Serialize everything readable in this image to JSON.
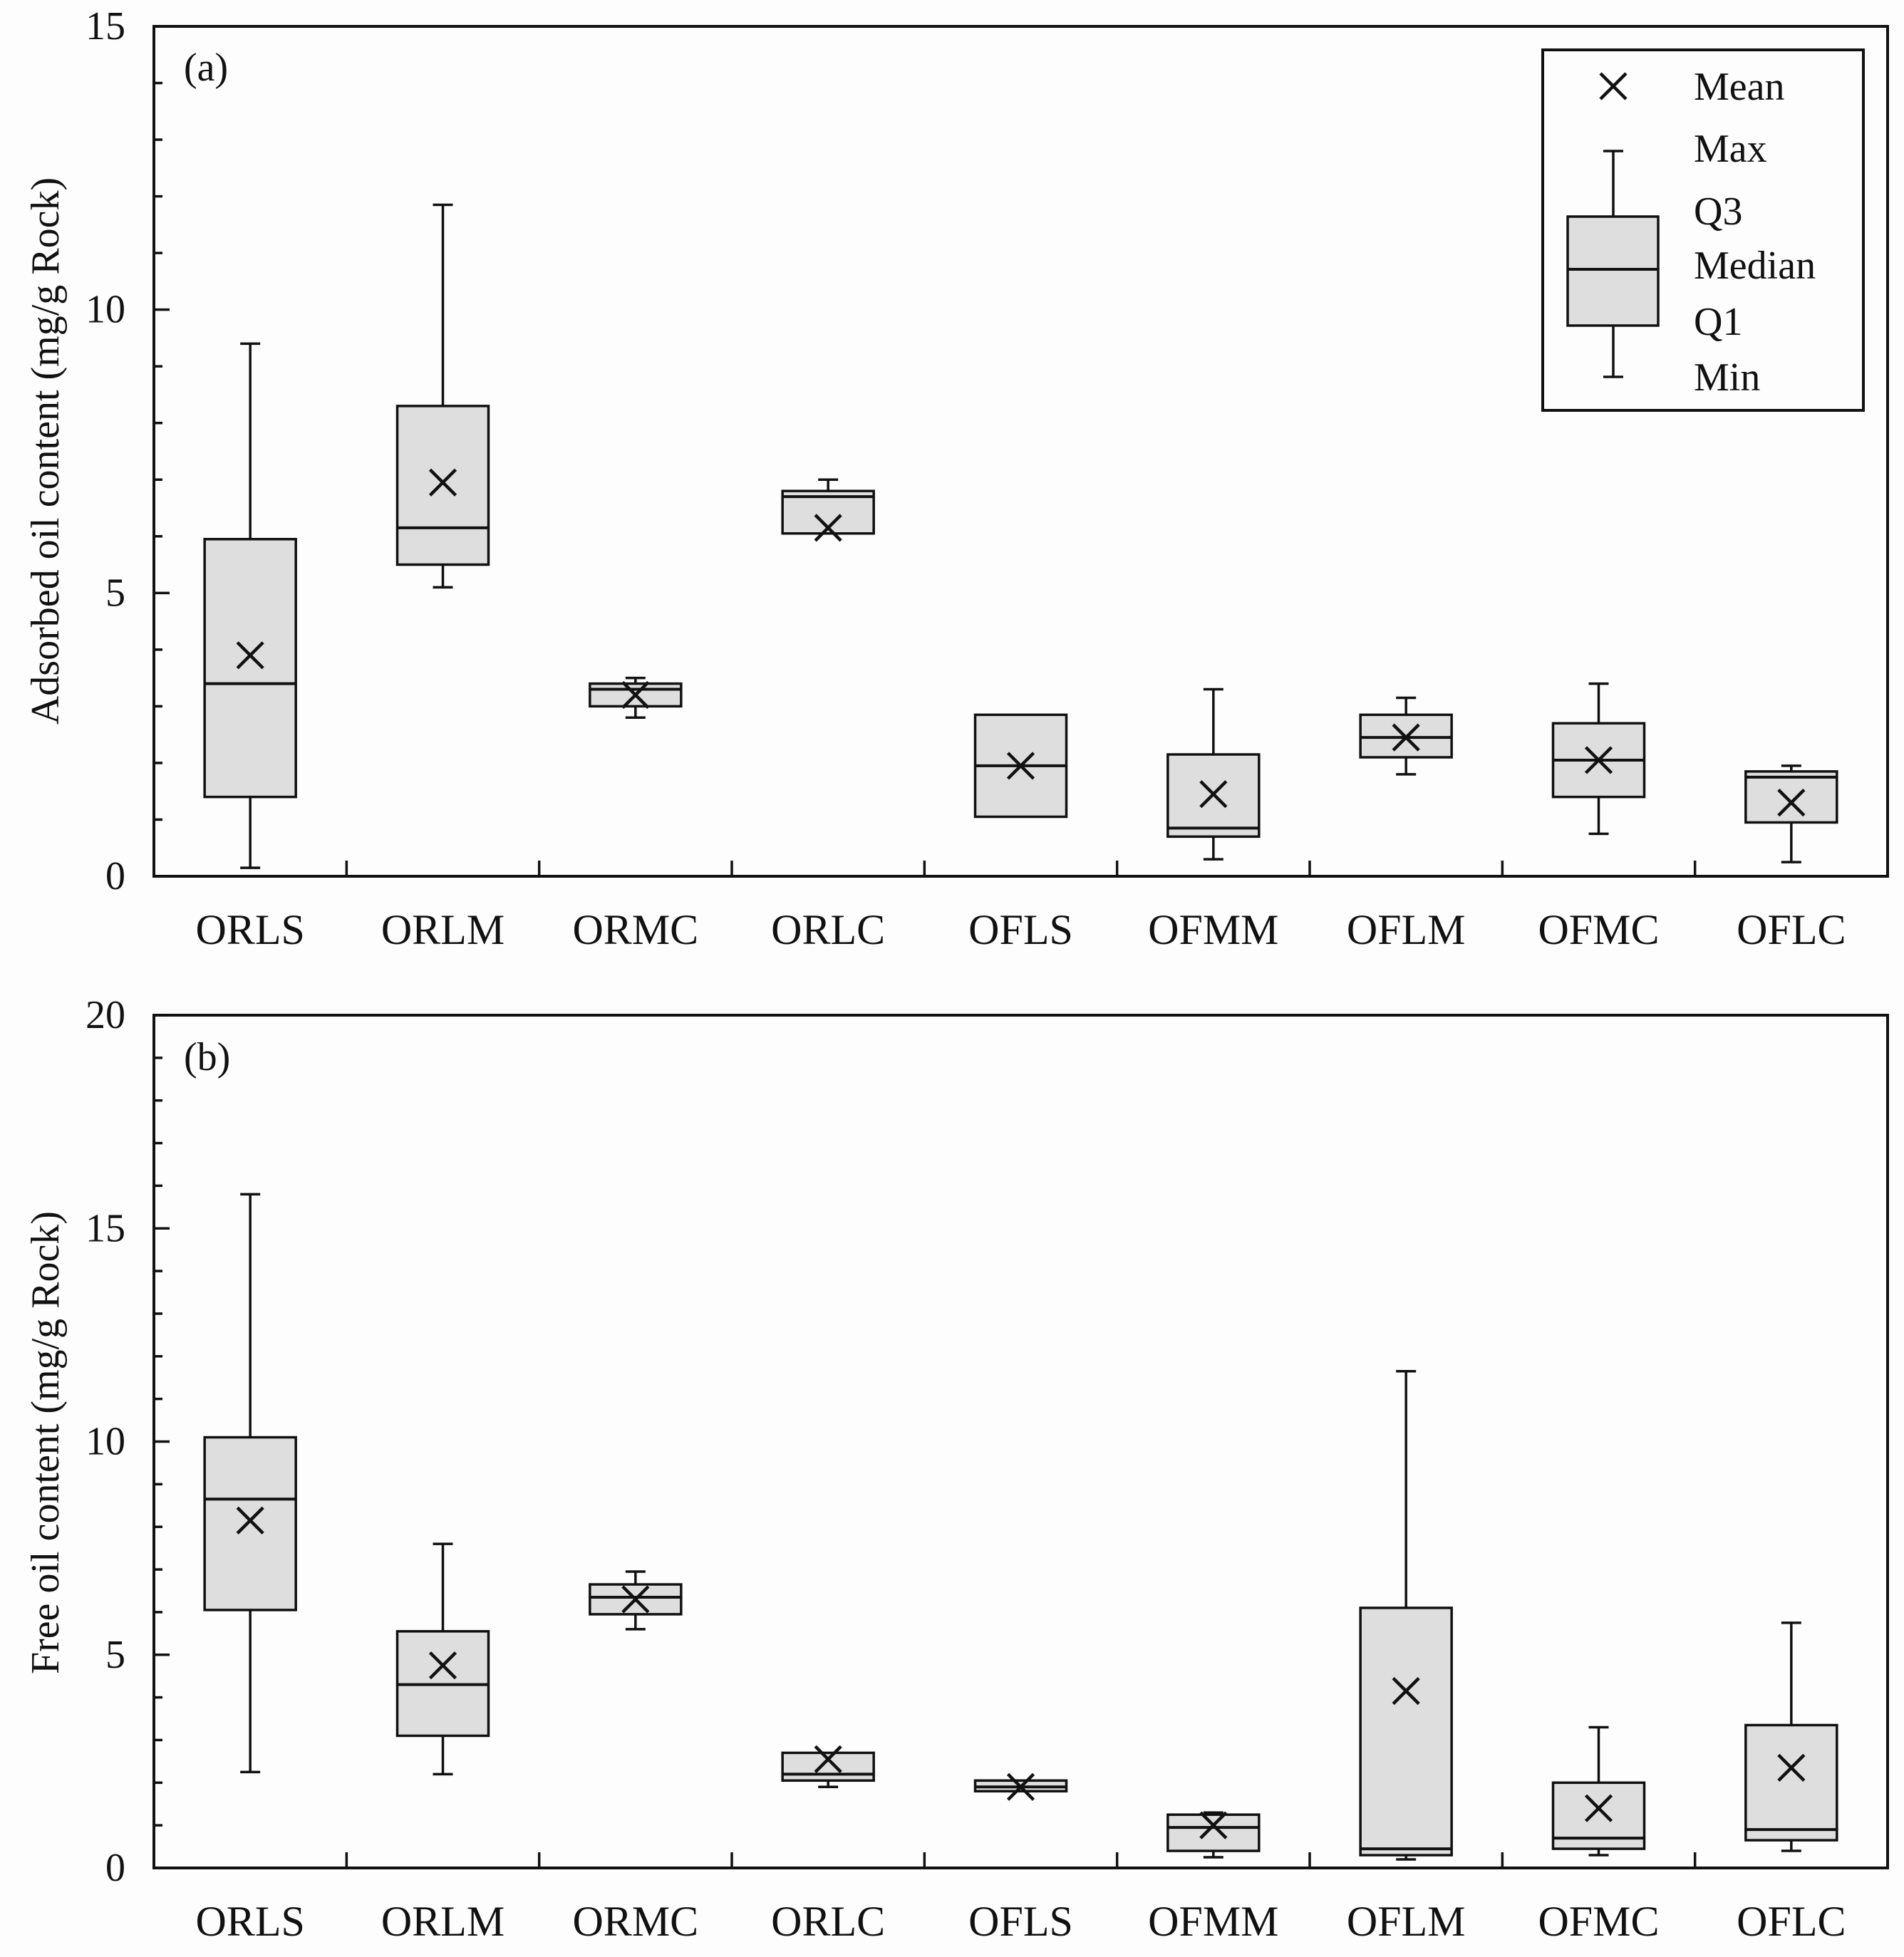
{
  "chart_data": [
    {
      "type": "box",
      "panel_label": "(a)",
      "ylabel": "Adsorbed oil content (mg/g Rock)",
      "xlabel": "",
      "ylim": [
        0,
        15
      ],
      "yticks": [
        0,
        5,
        10,
        15
      ],
      "categories": [
        "ORLS",
        "ORLM",
        "ORMC",
        "ORLC",
        "OFLS",
        "OFMM",
        "OFLM",
        "OFMC",
        "OFLC"
      ],
      "boxes": [
        {
          "min": 0.15,
          "q1": 1.4,
          "median": 3.4,
          "q3": 5.95,
          "max": 9.4,
          "mean": 3.9
        },
        {
          "min": 5.1,
          "q1": 5.5,
          "median": 6.15,
          "q3": 8.3,
          "max": 11.85,
          "mean": 6.95
        },
        {
          "min": 2.8,
          "q1": 3.0,
          "median": 3.3,
          "q3": 3.4,
          "max": 3.5,
          "mean": 3.2
        },
        {
          "min": 6.05,
          "q1": 6.05,
          "median": 6.7,
          "q3": 6.8,
          "max": 7.0,
          "mean": 6.15
        },
        {
          "min": 1.05,
          "q1": 1.05,
          "median": 1.95,
          "q3": 2.85,
          "max": 2.85,
          "mean": 1.95
        },
        {
          "min": 0.3,
          "q1": 0.7,
          "median": 0.85,
          "q3": 2.15,
          "max": 3.3,
          "mean": 1.45
        },
        {
          "min": 1.8,
          "q1": 2.1,
          "median": 2.45,
          "q3": 2.85,
          "max": 3.15,
          "mean": 2.45
        },
        {
          "min": 0.75,
          "q1": 1.4,
          "median": 2.05,
          "q3": 2.7,
          "max": 3.4,
          "mean": 2.05
        },
        {
          "min": 0.25,
          "q1": 0.95,
          "median": 1.75,
          "q3": 1.85,
          "max": 1.95,
          "mean": 1.3
        }
      ],
      "legend": {
        "position": "top-right",
        "entries": [
          "Mean",
          "Max",
          "Q3",
          "Median",
          "Q1",
          "Min"
        ]
      }
    },
    {
      "type": "box",
      "panel_label": "(b)",
      "ylabel": "Free oil content (mg/g Rock)",
      "xlabel": "",
      "ylim": [
        0,
        20
      ],
      "yticks": [
        0,
        5,
        10,
        15,
        20
      ],
      "categories": [
        "ORLS",
        "ORLM",
        "ORMC",
        "ORLC",
        "OFLS",
        "OFMM",
        "OFLM",
        "OFMC",
        "OFLC"
      ],
      "boxes": [
        {
          "min": 2.25,
          "q1": 6.05,
          "median": 8.65,
          "q3": 10.1,
          "max": 15.8,
          "mean": 8.15
        },
        {
          "min": 2.2,
          "q1": 3.1,
          "median": 4.3,
          "q3": 5.55,
          "max": 7.6,
          "mean": 4.75
        },
        {
          "min": 5.6,
          "q1": 5.95,
          "median": 6.35,
          "q3": 6.65,
          "max": 6.95,
          "mean": 6.3
        },
        {
          "min": 1.9,
          "q1": 2.05,
          "median": 2.2,
          "q3": 2.7,
          "max": 2.7,
          "mean": 2.55
        },
        {
          "min": 1.8,
          "q1": 1.8,
          "median": 1.9,
          "q3": 2.05,
          "max": 2.05,
          "mean": 1.9
        },
        {
          "min": 0.25,
          "q1": 0.4,
          "median": 0.95,
          "q3": 1.25,
          "max": 1.3,
          "mean": 1.0
        },
        {
          "min": 0.2,
          "q1": 0.3,
          "median": 0.45,
          "q3": 6.1,
          "max": 11.65,
          "mean": 4.15
        },
        {
          "min": 0.3,
          "q1": 0.45,
          "median": 0.7,
          "q3": 2.0,
          "max": 3.3,
          "mean": 1.4
        },
        {
          "min": 0.4,
          "q1": 0.65,
          "median": 0.9,
          "q3": 3.35,
          "max": 5.75,
          "mean": 2.35
        }
      ]
    }
  ]
}
